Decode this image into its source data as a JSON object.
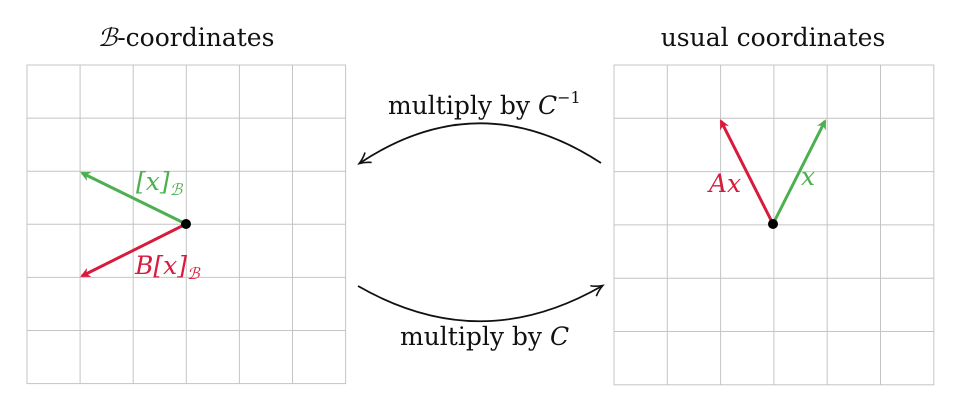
{
  "left_panel": {
    "title_script": "ℬ",
    "title_rest": "-coordinates",
    "green_label": "[x]",
    "green_label_sub": "ℬ",
    "red_label": "B[x]",
    "red_label_sub": "ℬ"
  },
  "right_panel": {
    "title": "usual coordinates",
    "green_label": "x",
    "red_label": "Ax"
  },
  "top_arrow": {
    "label_prefix": "multiply by ",
    "label_var": "C",
    "label_sup": "−1"
  },
  "bottom_arrow": {
    "label_prefix": "multiply by ",
    "label_var": "C"
  },
  "colors": {
    "green": "#4caf50",
    "red": "#d81b3c",
    "grid": "#c4c4c4",
    "arrow": "#111111"
  }
}
